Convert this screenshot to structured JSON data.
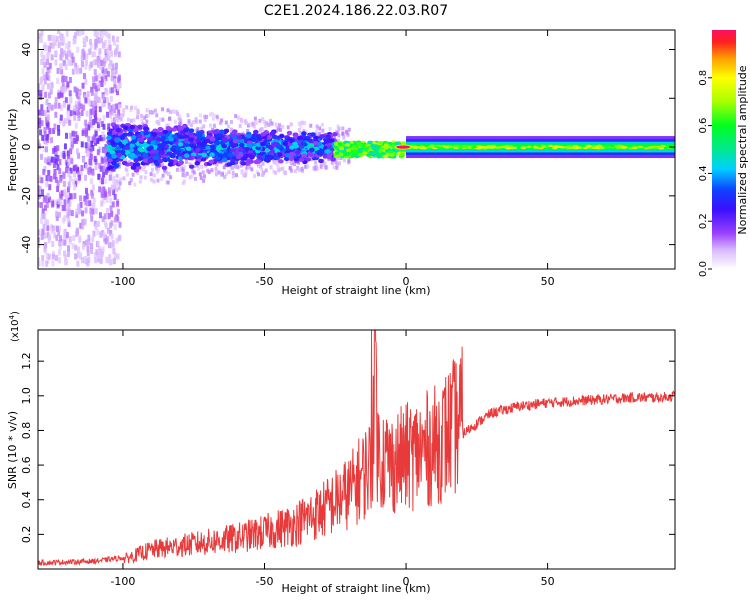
{
  "page": {
    "title": "C2E1.2024.186.22.03.R07"
  },
  "chart_data": [
    {
      "type": "heatmap",
      "title": "C2E1.2024.186.22.03.R07",
      "xlabel": "Height of straight line (km)",
      "ylabel": "Frequency (Hz)",
      "xlim": [
        -130,
        95
      ],
      "ylim": [
        -50,
        48
      ],
      "x_ticks": [
        -100,
        -50,
        0,
        50
      ],
      "x_tick_labels": [
        "-100",
        "-50",
        "0",
        "50"
      ],
      "y_ticks": [
        -40,
        -20,
        0,
        20,
        40
      ],
      "y_tick_labels": [
        "-40",
        "-20",
        "0",
        "20",
        "40"
      ],
      "colorbar": {
        "label": "Normalized spectral amplitude",
        "range": [
          0,
          1
        ],
        "ticks": [
          0.0,
          0.2,
          0.4,
          0.6,
          0.8
        ],
        "tick_labels": [
          "0.0",
          "0.2",
          "0.4",
          "0.6",
          "0.8"
        ]
      },
      "features": [
        {
          "desc": "diffuse scatter",
          "x_range": [
            -130,
            -105
          ],
          "freq_halfwidth": 48,
          "amplitude": 0.12
        },
        {
          "desc": "broad band",
          "x_range": [
            -105,
            -25
          ],
          "freq_halfwidth": 8,
          "amplitude": 0.35
        },
        {
          "desc": "narrowing band",
          "x_range": [
            -25,
            0
          ],
          "freq_halfwidth": 3,
          "amplitude": 0.6
        },
        {
          "desc": "narrow line",
          "x_range": [
            0,
            95
          ],
          "freq_halfwidth": 2,
          "amplitude": 0.6
        },
        {
          "desc": "peak",
          "x_range": [
            -4,
            2
          ],
          "freq": 0,
          "amplitude": 1.0
        }
      ]
    },
    {
      "type": "line",
      "xlabel": "Height of straight line (km)",
      "ylabel": "SNR (10 * v/v)",
      "y_multiplier_label": "(x10",
      "y_multiplier_exp": "4",
      "y_multiplier_close": ")",
      "xlim": [
        -130,
        95
      ],
      "ylim": [
        0,
        1.38
      ],
      "x_ticks": [
        -100,
        -50,
        0,
        50
      ],
      "x_tick_labels": [
        "-100",
        "-50",
        "0",
        "50"
      ],
      "y_ticks": [
        0.2,
        0.4,
        0.6,
        0.8,
        1.0,
        1.2
      ],
      "y_tick_labels": [
        "0.2",
        "0.4",
        "0.6",
        "0.8",
        "1.0",
        "1.2"
      ],
      "series": [
        {
          "color": "#e83a3a",
          "x": [
            -130,
            -110,
            -100,
            -90,
            -80,
            -70,
            -60,
            -50,
            -40,
            -30,
            -20,
            -12,
            -11,
            -10,
            -5,
            0,
            10,
            20,
            30,
            40,
            50,
            60,
            70,
            80,
            90,
            95
          ],
          "y": [
            0.02,
            0.03,
            0.05,
            0.1,
            0.12,
            0.14,
            0.16,
            0.19,
            0.23,
            0.3,
            0.4,
            0.55,
            1.38,
            0.6,
            0.55,
            0.58,
            0.64,
            0.78,
            0.9,
            0.94,
            0.96,
            0.97,
            0.98,
            0.99,
            0.99,
            1.0
          ]
        }
      ]
    }
  ]
}
